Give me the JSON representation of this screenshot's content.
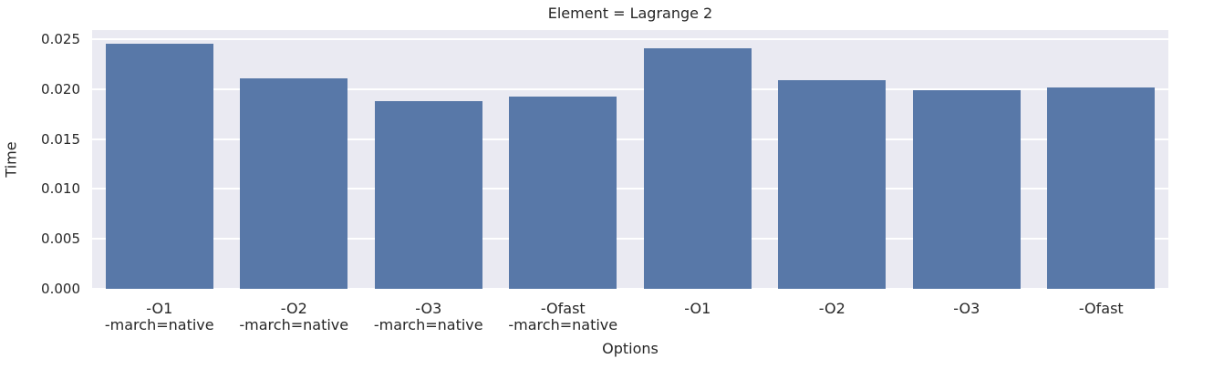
{
  "chart_data": {
    "type": "bar",
    "title": "Element = Lagrange 2",
    "xlabel": "Options",
    "ylabel": "Time",
    "categories": [
      "-O1\n-march=native",
      "-O2\n-march=native",
      "-O3\n-march=native",
      "-Ofast\n-march=native",
      "-O1",
      "-O2",
      "-O3",
      "-Ofast"
    ],
    "values": [
      0.0245,
      0.0211,
      0.0188,
      0.0192,
      0.0241,
      0.0209,
      0.0199,
      0.0202
    ],
    "ylim": [
      0,
      0.0259
    ],
    "yticks": [
      0,
      0.005,
      0.01,
      0.015,
      0.02,
      0.025
    ],
    "ytick_labels": [
      "0.000",
      "0.005",
      "0.010",
      "0.015",
      "0.020",
      "0.025"
    ],
    "grid": true,
    "legend": "none",
    "colors": {
      "bar": "#5878a8",
      "plot_background": "#eaeaf2",
      "gridline": "#ffffff",
      "text": "#262626",
      "figure_background": "#ffffff"
    }
  }
}
